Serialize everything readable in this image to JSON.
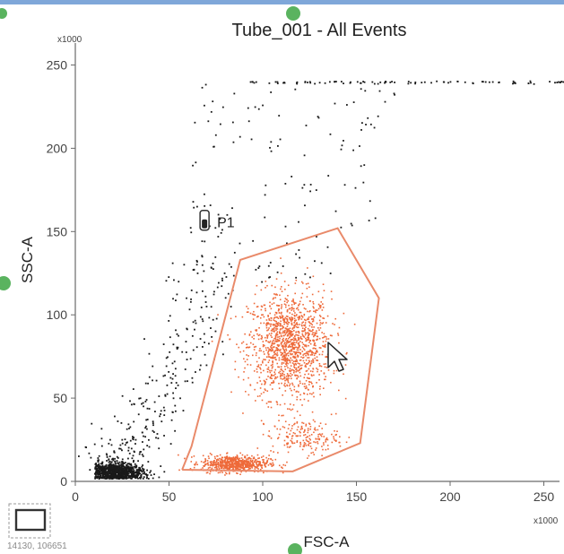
{
  "title": "Tube_001 - All Events",
  "coordinate_readout": "14130, 106651",
  "colors": {
    "ungated": "#1a1a1a",
    "gated": "#ee6a3a",
    "gate_outline": "#e98a6a",
    "handle": "#5ab35f",
    "frame": "#7fa7d9"
  },
  "icons": [
    "selection-rect-icon",
    "gate-tube-icon",
    "mouse-pointer-icon"
  ],
  "chart_data": {
    "type": "scatter",
    "title": "Tube_001 - All Events",
    "xlabel": "FSC-A",
    "ylabel": "SSC-A",
    "x_multiplier": "x1000",
    "y_multiplier": "x1000",
    "xlim": [
      0,
      262
    ],
    "ylim": [
      0,
      262
    ],
    "x_ticks": [
      "0",
      "50",
      "100",
      "150",
      "200",
      "250"
    ],
    "y_ticks": [
      "0",
      "50",
      "100",
      "150",
      "200",
      "250"
    ],
    "x_tick_values": [
      0,
      50,
      100,
      150,
      200,
      250
    ],
    "y_tick_values": [
      0,
      50,
      100,
      150,
      200,
      250
    ],
    "gate": {
      "name": "P1",
      "vertices": [
        [
          57,
          7
        ],
        [
          62,
          21
        ],
        [
          88,
          133
        ],
        [
          140,
          152
        ],
        [
          162,
          110
        ],
        [
          152,
          23
        ],
        [
          116,
          6
        ],
        [
          57,
          7
        ]
      ],
      "label_pos": [
        68,
        160
      ]
    },
    "populations": [
      {
        "name": "gated-main",
        "gated": true,
        "center": [
          114,
          82
        ],
        "spread": [
          11,
          16
        ],
        "count": 1300
      },
      {
        "name": "gated-debris",
        "gated": true,
        "center": [
          85,
          11
        ],
        "spread": [
          9,
          2.5
        ],
        "count": 650
      },
      {
        "name": "gated-lower",
        "gated": true,
        "center": [
          122,
          27
        ],
        "spread": [
          9,
          5
        ],
        "count": 180
      },
      {
        "name": "ungated-debris",
        "gated": false,
        "center": [
          22,
          6
        ],
        "spread": [
          7,
          3
        ],
        "count": 900
      },
      {
        "name": "ungated-tail",
        "gated": false,
        "center": [
          45,
          55
        ],
        "spread": [
          18,
          35
        ],
        "count": 280
      },
      {
        "name": "ungated-high",
        "gated": false,
        "center": [
          120,
          195
        ],
        "spread": [
          35,
          35
        ],
        "count": 140
      },
      {
        "name": "saturation-row",
        "gated": false,
        "center": [
          200,
          240
        ],
        "spread": [
          40,
          0.5
        ],
        "count": 90
      }
    ]
  }
}
